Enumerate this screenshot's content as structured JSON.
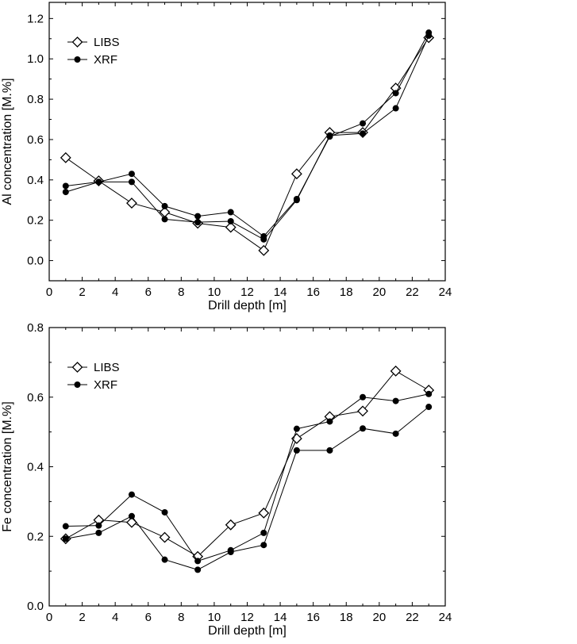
{
  "chart_data": [
    {
      "type": "line",
      "xlabel": "Drill depth [m]",
      "ylabel": "Al concentration [M.%]",
      "xlim": [
        0,
        24
      ],
      "ylim": [
        -0.1,
        1.28
      ],
      "xticks": [
        0,
        2,
        4,
        6,
        8,
        10,
        12,
        14,
        16,
        18,
        20,
        22,
        24
      ],
      "yticks": [
        0.0,
        0.2,
        0.4,
        0.6,
        0.8,
        1.0,
        1.2
      ],
      "ytick_decimals": 1,
      "legend_position": "top-left",
      "series": [
        {
          "name": "LIBS",
          "marker": "diamond",
          "x": [
            1,
            3,
            5,
            7,
            9,
            11,
            13,
            15,
            17,
            19,
            21,
            23
          ],
          "values": [
            0.51,
            0.395,
            0.285,
            0.24,
            0.185,
            0.165,
            0.05,
            0.43,
            0.635,
            0.635,
            0.855,
            1.105
          ]
        },
        {
          "name": "XRF",
          "marker": "circle",
          "x": [
            1,
            3,
            5,
            7,
            9,
            11,
            13,
            15,
            17,
            19,
            21,
            23
          ],
          "values": [
            0.37,
            0.39,
            0.43,
            0.27,
            0.22,
            0.24,
            0.12,
            0.305,
            0.615,
            0.68,
            0.83,
            1.13
          ]
        },
        {
          "name": "",
          "marker": "circle",
          "x": [
            1,
            3,
            5,
            7,
            9,
            11,
            13,
            15,
            17,
            19,
            21,
            23
          ],
          "values": [
            0.34,
            0.39,
            0.39,
            0.205,
            0.19,
            0.195,
            0.105,
            0.3,
            0.62,
            0.63,
            0.755,
            1.115
          ]
        }
      ]
    },
    {
      "type": "line",
      "xlabel": "Drill depth [m]",
      "ylabel": "Fe concentration [M.%]",
      "xlim": [
        0,
        24
      ],
      "ylim": [
        0.0,
        0.8
      ],
      "xticks": [
        0,
        2,
        4,
        6,
        8,
        10,
        12,
        14,
        16,
        18,
        20,
        22,
        24
      ],
      "yticks": [
        0.0,
        0.2,
        0.4,
        0.6,
        0.8
      ],
      "ytick_decimals": 1,
      "legend_position": "top-left",
      "series": [
        {
          "name": "LIBS",
          "marker": "diamond",
          "x": [
            1,
            3,
            5,
            7,
            9,
            11,
            13,
            15,
            17,
            19,
            21,
            23
          ],
          "values": [
            0.193,
            0.247,
            0.24,
            0.197,
            0.142,
            0.233,
            0.267,
            0.481,
            0.544,
            0.56,
            0.675,
            0.62
          ]
        },
        {
          "name": "XRF",
          "marker": "circle",
          "x": [
            1,
            3,
            5,
            7,
            9,
            11,
            13,
            15,
            17,
            19,
            21,
            23
          ],
          "values": [
            0.229,
            0.231,
            0.32,
            0.269,
            0.129,
            0.16,
            0.21,
            0.509,
            0.53,
            0.6,
            0.589,
            0.609
          ]
        },
        {
          "name": "",
          "marker": "circle",
          "x": [
            1,
            3,
            5,
            7,
            9,
            11,
            13,
            15,
            17,
            19,
            21,
            23
          ],
          "values": [
            0.193,
            0.21,
            0.258,
            0.133,
            0.104,
            0.155,
            0.175,
            0.447,
            0.447,
            0.51,
            0.495,
            0.572
          ]
        }
      ]
    }
  ]
}
